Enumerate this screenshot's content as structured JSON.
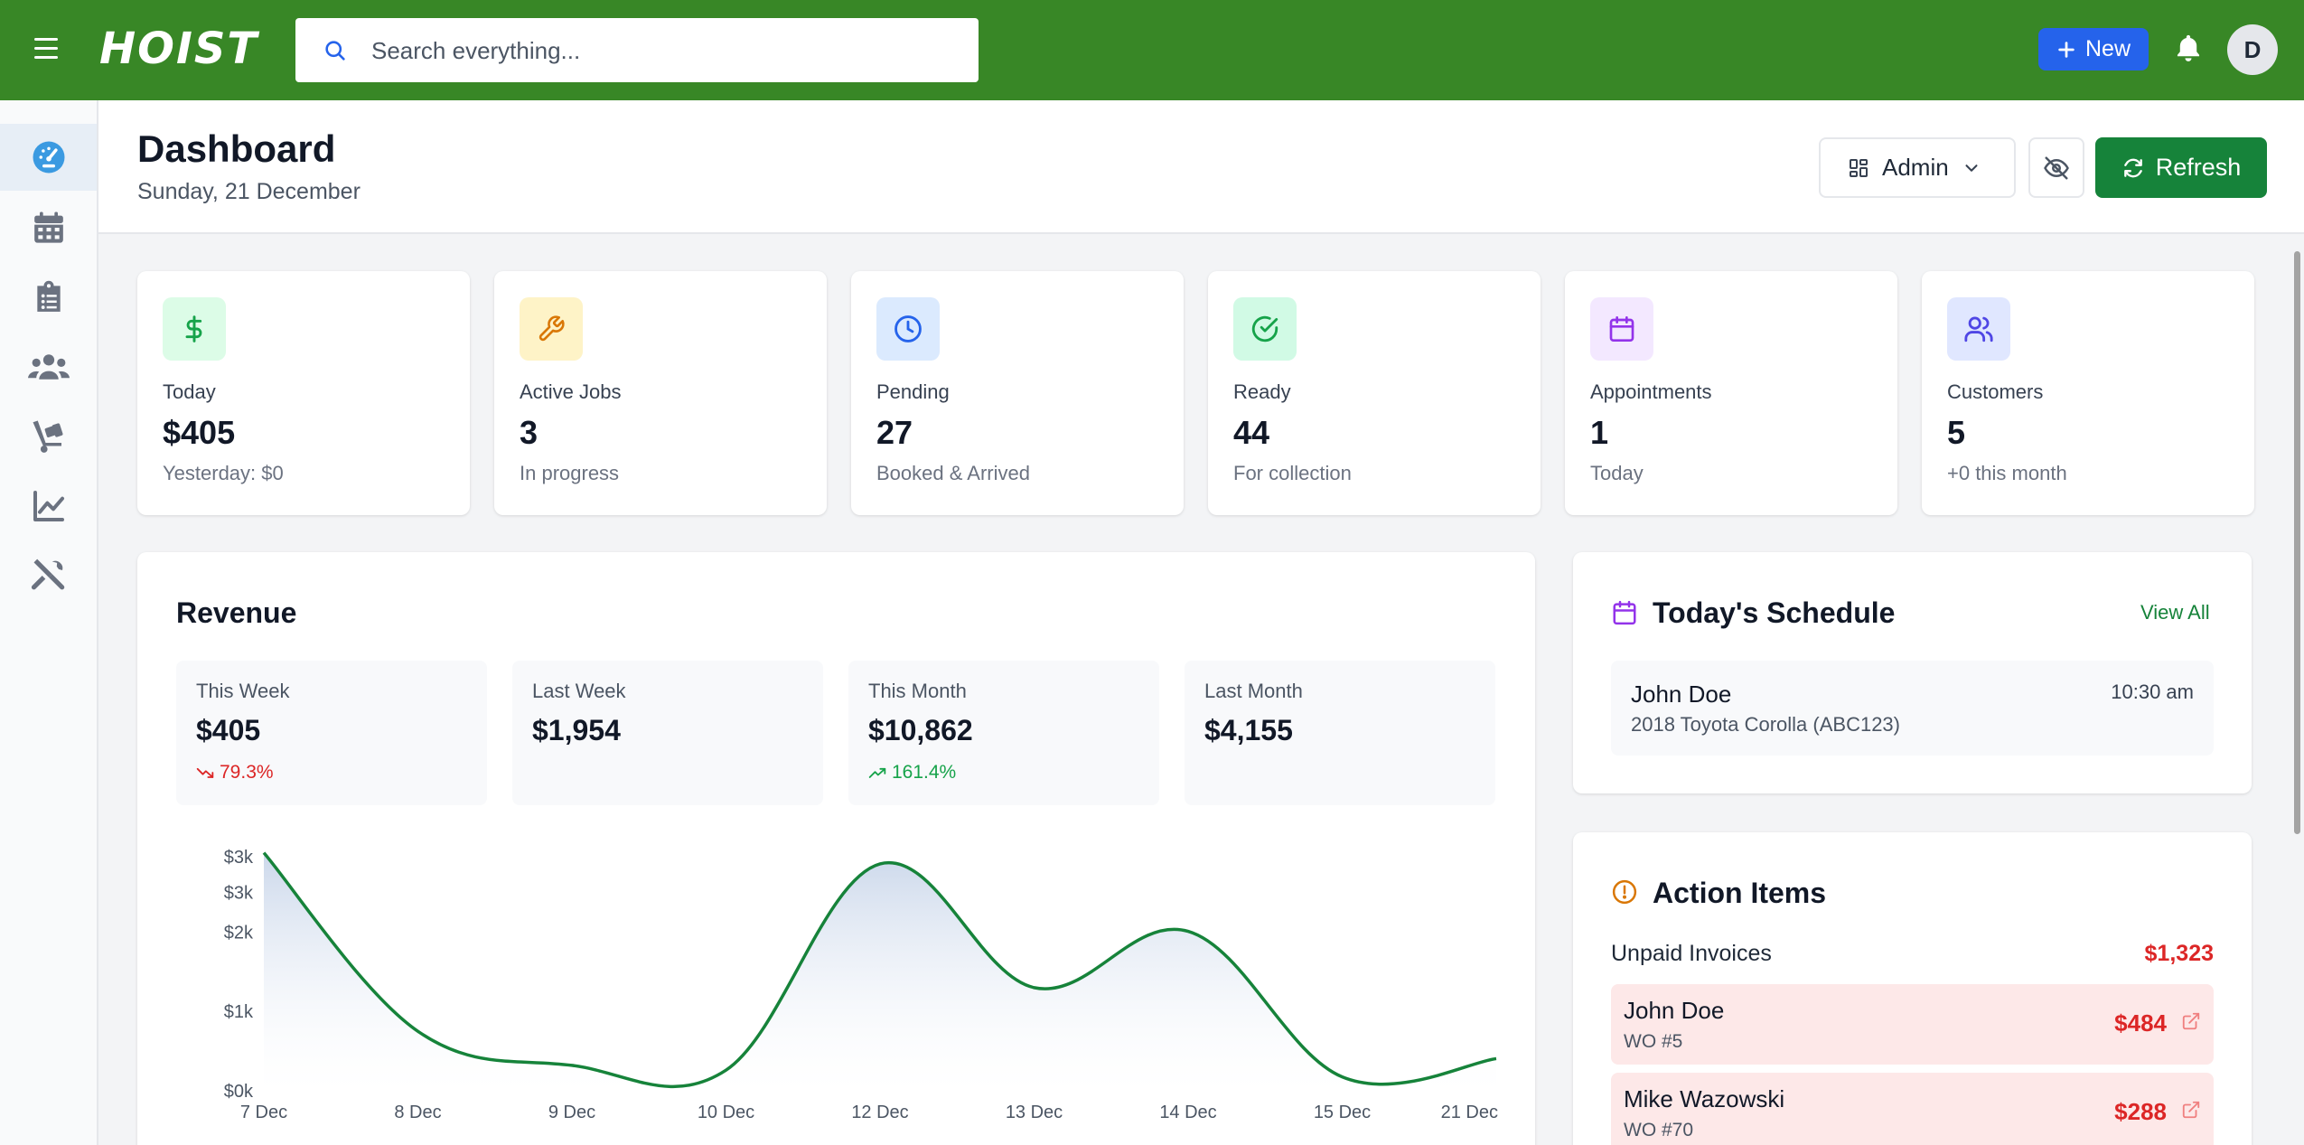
{
  "app": {
    "logo": "HOIST"
  },
  "topbar": {
    "search_placeholder": "Search everything...",
    "new_label": "New",
    "avatar_initial": "D"
  },
  "sidebar": {
    "items": [
      {
        "name": "dashboard",
        "icon": "speedometer-icon",
        "active": true
      },
      {
        "name": "calendar",
        "icon": "calendar-icon",
        "active": false
      },
      {
        "name": "jobs",
        "icon": "clipboard-list-icon",
        "active": false
      },
      {
        "name": "customers",
        "icon": "users-icon",
        "active": false
      },
      {
        "name": "parts",
        "icon": "dolly-icon",
        "active": false
      },
      {
        "name": "reports",
        "icon": "chart-line-icon",
        "active": false
      },
      {
        "name": "tools",
        "icon": "tools-icon",
        "active": false
      }
    ]
  },
  "header": {
    "title": "Dashboard",
    "date": "Sunday, 21 December",
    "role_label": "Admin",
    "refresh_label": "Refresh"
  },
  "stats": [
    {
      "label": "Today",
      "value": "$405",
      "sub": "Yesterday: $0",
      "icon": "dollar-icon",
      "color": "#16a34a",
      "bg": "#dcfce7"
    },
    {
      "label": "Active Jobs",
      "value": "3",
      "sub": "In progress",
      "icon": "wrench-icon",
      "color": "#d97706",
      "bg": "#fef3c7"
    },
    {
      "label": "Pending",
      "value": "27",
      "sub": "Booked & Arrived",
      "icon": "clock-icon",
      "color": "#2563eb",
      "bg": "#dbeafe"
    },
    {
      "label": "Ready",
      "value": "44",
      "sub": "For collection",
      "icon": "check-circle-icon",
      "color": "#16a34a",
      "bg": "#d1fae5"
    },
    {
      "label": "Appointments",
      "value": "1",
      "sub": "Today",
      "icon": "calendar-icon",
      "color": "#9333ea",
      "bg": "#f3e8ff"
    },
    {
      "label": "Customers",
      "value": "5",
      "sub": "+0 this month",
      "icon": "users-icon",
      "color": "#4f46e5",
      "bg": "#e0e7ff"
    }
  ],
  "revenue": {
    "title": "Revenue",
    "periods": [
      {
        "label": "This Week",
        "value": "$405",
        "change": "79.3%",
        "direction": "down"
      },
      {
        "label": "Last Week",
        "value": "$1,954",
        "change": "",
        "direction": "none"
      },
      {
        "label": "This Month",
        "value": "$10,862",
        "change": "161.4%",
        "direction": "up"
      },
      {
        "label": "Last Month",
        "value": "$4,155",
        "change": "",
        "direction": "none"
      }
    ]
  },
  "chart_data": {
    "type": "area",
    "x": [
      "7 Dec",
      "8 Dec",
      "9 Dec",
      "10 Dec",
      "12 Dec",
      "13 Dec",
      "14 Dec",
      "15 Dec",
      "21 Dec"
    ],
    "y_ticks": [
      "$3k",
      "$3k",
      "$2k",
      "$1k",
      "$0k"
    ],
    "y_tick_values": [
      2950,
      2500,
      2000,
      1000,
      0
    ],
    "ylim": [
      0,
      2950
    ],
    "series": [
      {
        "values": [
          3000,
          750,
          320,
          260,
          2860,
          1300,
          2010,
          175,
          405
        ]
      }
    ],
    "line_color": "#16833a",
    "fill_color": "#d6e0ef",
    "grid": false
  },
  "schedule": {
    "title": "Today's Schedule",
    "view_all": "View All",
    "items": [
      {
        "name": "John Doe",
        "vehicle": "2018 Toyota Corolla (ABC123)",
        "time": "10:30 am"
      }
    ]
  },
  "actions": {
    "title": "Action Items",
    "unpaid_label": "Unpaid Invoices",
    "unpaid_total": "$1,323",
    "invoices": [
      {
        "name": "John Doe",
        "wo": "WO #5",
        "amount": "$484"
      },
      {
        "name": "Mike Wazowski",
        "wo": "WO #70",
        "amount": "$288"
      }
    ]
  }
}
